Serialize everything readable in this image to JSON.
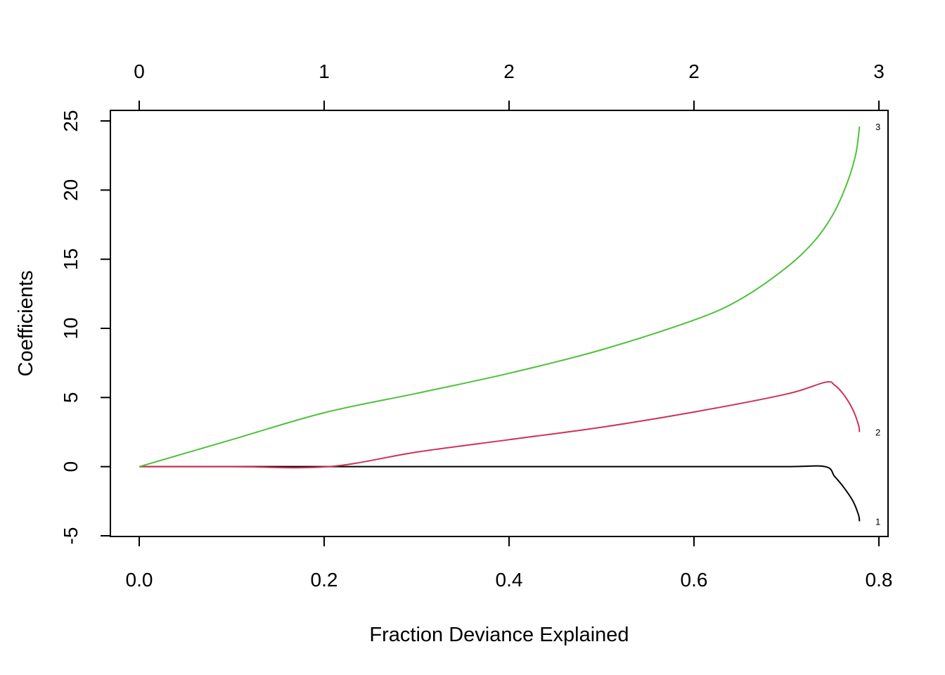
{
  "chart_data": {
    "type": "line",
    "xlabel": "Fraction Deviance Explained",
    "ylabel": "Coefficients",
    "xlim": [
      0.0,
      0.8
    ],
    "ylim": [
      -5,
      25
    ],
    "x_tick_labels": [
      "0.0",
      "0.2",
      "0.4",
      "0.6",
      "0.8"
    ],
    "x_ticks": [
      0.0,
      0.2,
      0.4,
      0.6,
      0.8
    ],
    "y_tick_labels": [
      "-5",
      "0",
      "5",
      "10",
      "15",
      "20",
      "25"
    ],
    "y_ticks": [
      -5,
      0,
      5,
      10,
      15,
      20,
      25
    ],
    "top_axis": {
      "ticks": [
        0.0,
        0.2,
        0.4,
        0.6,
        0.8
      ],
      "labels": [
        "0",
        "1",
        "2",
        "2",
        "3"
      ]
    },
    "grid": false,
    "series": [
      {
        "label": "1",
        "color": "#000000",
        "x": [
          0.0,
          0.1,
          0.2,
          0.3,
          0.4,
          0.5,
          0.6,
          0.7,
          0.742,
          0.752,
          0.762,
          0.772,
          0.778,
          0.779
        ],
        "y": [
          0,
          0,
          0,
          0,
          0,
          0,
          0,
          0,
          0,
          -0.7,
          -1.5,
          -2.5,
          -3.5,
          -3.95
        ]
      },
      {
        "label": "2",
        "color": "#cd3355",
        "x": [
          0.0,
          0.1,
          0.205,
          0.3,
          0.4,
          0.5,
          0.6,
          0.7,
          0.742,
          0.752,
          0.762,
          0.772,
          0.778,
          0.779
        ],
        "y": [
          0,
          0,
          0,
          1.05,
          1.95,
          2.85,
          3.95,
          5.25,
          6.1,
          5.9,
          5.2,
          4.1,
          3.0,
          2.5
        ]
      },
      {
        "label": "3",
        "color": "#4dc23a",
        "x": [
          0.0,
          0.1,
          0.2,
          0.3,
          0.4,
          0.5,
          0.6,
          0.65,
          0.7,
          0.73,
          0.75,
          0.765,
          0.775,
          0.779
        ],
        "y": [
          0,
          1.95,
          3.9,
          5.3,
          6.75,
          8.45,
          10.6,
          12.1,
          14.4,
          16.3,
          18.2,
          20.4,
          22.6,
          24.6
        ]
      }
    ]
  }
}
